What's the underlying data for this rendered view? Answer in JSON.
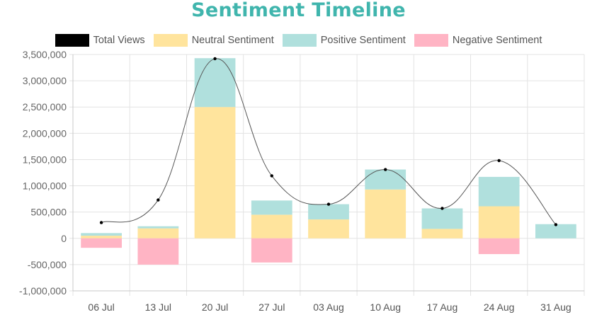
{
  "chart_data": {
    "type": "bar",
    "title": "Sentiment Timeline",
    "categories": [
      "06 Jul",
      "13 Jul",
      "20 Jul",
      "27 Jul",
      "03 Aug",
      "10 Aug",
      "17 Aug",
      "24 Aug",
      "31 Aug"
    ],
    "series": [
      {
        "name": "Total Views",
        "type": "line",
        "color": "#000000",
        "values": [
          300000,
          730000,
          3420000,
          1190000,
          650000,
          1310000,
          570000,
          1480000,
          260000
        ]
      },
      {
        "name": "Neutral Sentiment",
        "type": "bar",
        "stack": "sentiment",
        "color": "#ffe49d",
        "values": [
          50000,
          190000,
          2500000,
          450000,
          360000,
          930000,
          180000,
          610000,
          0
        ]
      },
      {
        "name": "Positive Sentiment",
        "type": "bar",
        "stack": "sentiment",
        "color": "#b0e0dd",
        "values": [
          50000,
          40000,
          930000,
          270000,
          290000,
          380000,
          390000,
          560000,
          270000
        ]
      },
      {
        "name": "Negative Sentiment",
        "type": "bar",
        "stack": "sentiment",
        "color": "#ffb4c4",
        "values": [
          -180000,
          -500000,
          0,
          -460000,
          0,
          0,
          0,
          -300000,
          0
        ]
      }
    ],
    "ylim": [
      -1000000,
      3500000
    ],
    "yticks": [
      -1000000,
      -500000,
      0,
      500000,
      1000000,
      1500000,
      2000000,
      2500000,
      3000000,
      3500000
    ],
    "ytick_labels": [
      "-1,000,000",
      "-500,000",
      "0",
      "500,000",
      "1,000,000",
      "1,500,000",
      "2,000,000",
      "2,500,000",
      "3,000,000",
      "3,500,000"
    ],
    "xlabel": "",
    "ylabel": "",
    "grid": true,
    "legend_position": "top"
  }
}
